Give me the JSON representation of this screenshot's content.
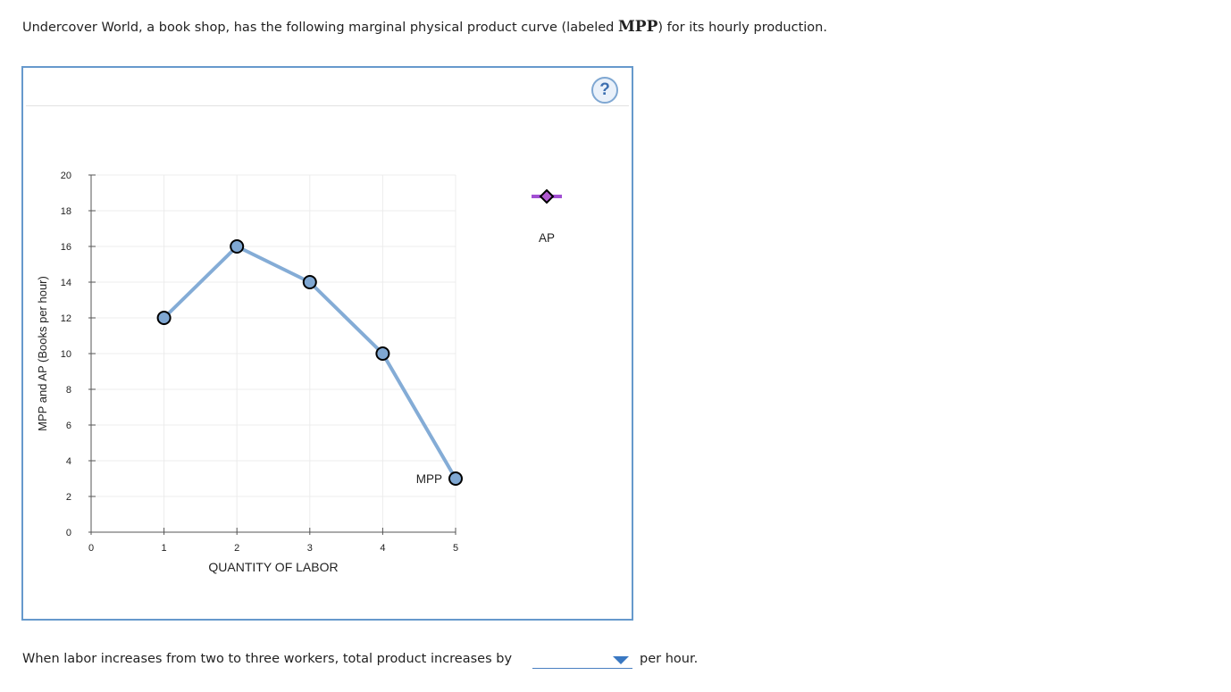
{
  "question": {
    "intro_before": "Undercover World, a book shop, has the following marginal physical product curve (labeled ",
    "intro_symbol": "MPP",
    "intro_after": ") for its hourly production.",
    "prompt": "When labor increases from two to three workers, total product increases by",
    "suffix": "per hour.",
    "answer_selected": ""
  },
  "help_label": "?",
  "colors": {
    "mpp_line": "#84acd6",
    "mpp_point": "#7fa7d2",
    "ap_marker": "#b05ad0",
    "ap_line": "#a24fd3",
    "grid": "#ececec",
    "axis": "#555555"
  },
  "chart_data": {
    "type": "line",
    "xlabel": "QUANTITY OF LABOR",
    "ylabel": "MPP and AP (Books per hour)",
    "xlim": [
      0,
      5
    ],
    "ylim": [
      0,
      20
    ],
    "xticks": [
      0,
      1,
      2,
      3,
      4,
      5
    ],
    "yticks": [
      0,
      2,
      4,
      6,
      8,
      10,
      12,
      14,
      16,
      18,
      20
    ],
    "grid": true,
    "series": [
      {
        "name": "MPP",
        "x": [
          1,
          2,
          3,
          4,
          5
        ],
        "y": [
          12,
          16,
          14,
          10,
          3
        ]
      }
    ],
    "legend": [
      {
        "name": "AP",
        "marker": "diamond",
        "placement": "top-right"
      }
    ]
  }
}
